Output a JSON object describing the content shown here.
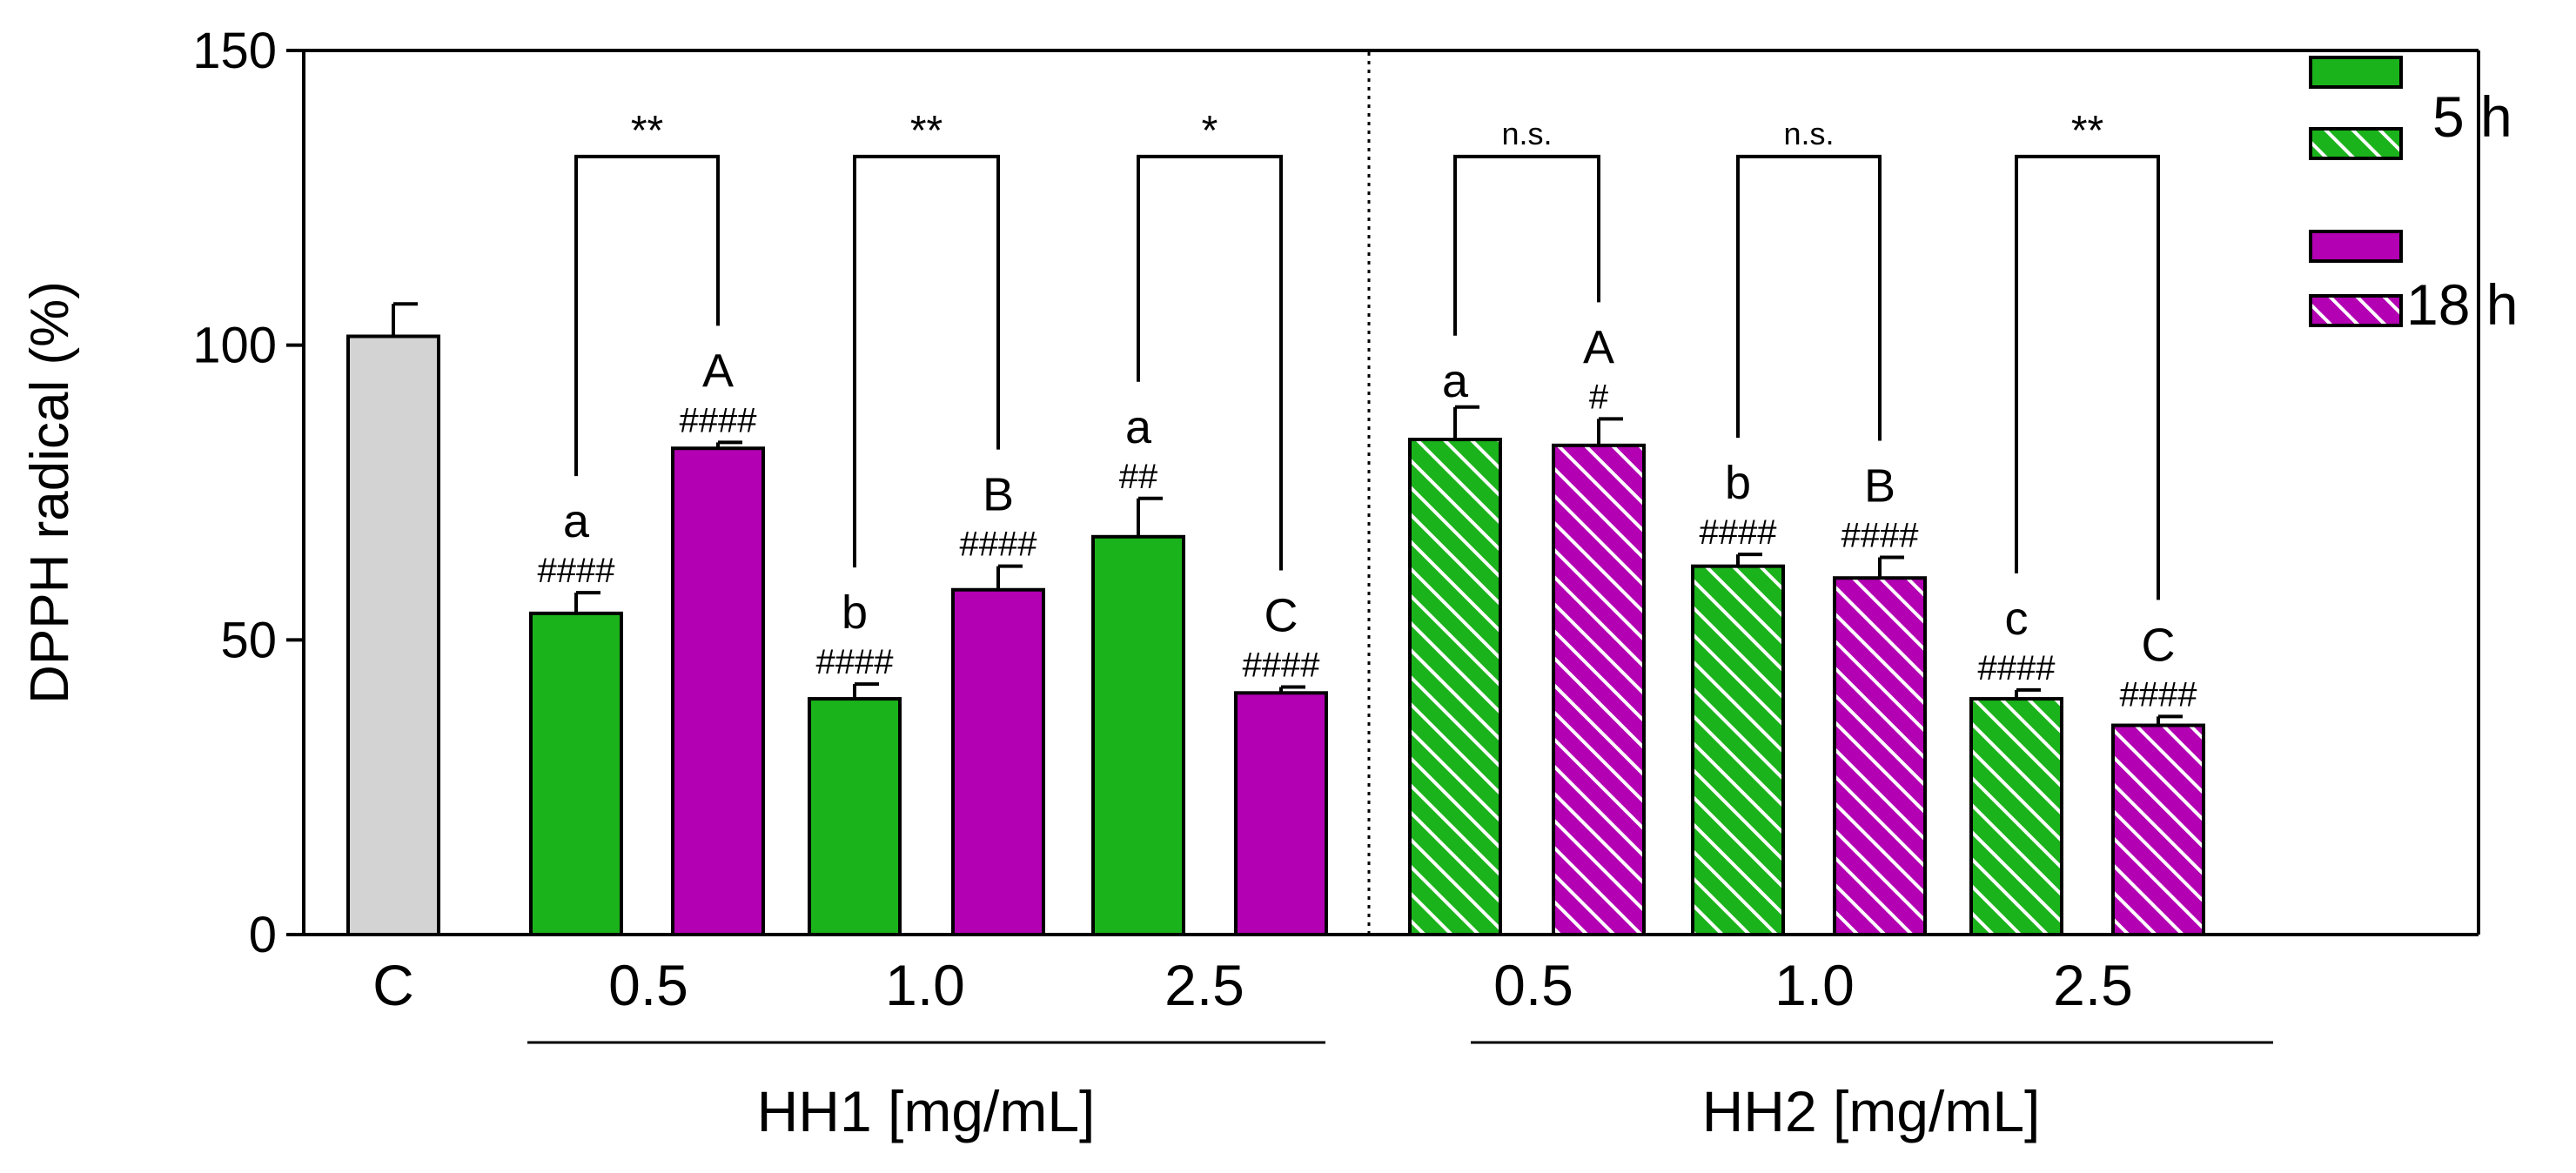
{
  "chart_data": {
    "type": "bar",
    "title": "",
    "xlabel": "",
    "ylabel": "DPPH radical (%)",
    "ylim": [
      0,
      150
    ],
    "yticks": [
      0,
      50,
      100,
      150
    ],
    "groups": [
      {
        "label": "HH1 [mg/mL]"
      },
      {
        "label": "HH2 [mg/mL]"
      }
    ],
    "legend": {
      "position": "top-right",
      "labels": [
        "5 h",
        "18 h"
      ]
    },
    "colors": {
      "control": "#d3d3d3",
      "h5": "#1bb31b",
      "h18": "#b300b3",
      "hatch": "#ffffff"
    },
    "bars": [
      {
        "category": "C",
        "series": "control",
        "value": 101.5,
        "error": 5.5,
        "hatched": false,
        "letter": "",
        "hash": ""
      },
      {
        "category": "HH1 0.5",
        "series": "5 h",
        "value": 54.5,
        "error": 3.5,
        "hatched": false,
        "letter": "a",
        "hash": "####"
      },
      {
        "category": "HH1 0.5",
        "series": "18 h",
        "value": 82.5,
        "error": 1,
        "hatched": false,
        "letter": "A",
        "hash": "####"
      },
      {
        "category": "HH1 1.0",
        "series": "5 h",
        "value": 40,
        "error": 2.5,
        "hatched": false,
        "letter": "b",
        "hash": "####"
      },
      {
        "category": "HH1 1.0",
        "series": "18 h",
        "value": 58.5,
        "error": 4,
        "hatched": false,
        "letter": "B",
        "hash": "####"
      },
      {
        "category": "HH1 2.5",
        "series": "5 h",
        "value": 67.5,
        "error": 6.5,
        "hatched": false,
        "letter": "a",
        "hash": "##"
      },
      {
        "category": "HH1 2.5",
        "series": "18 h",
        "value": 41,
        "error": 1,
        "hatched": false,
        "letter": "C",
        "hash": "####"
      },
      {
        "category": "HH2 0.5",
        "series": "5 h",
        "value": 84,
        "error": 5.5,
        "hatched": true,
        "letter": "a",
        "hash": ""
      },
      {
        "category": "HH2 0.5",
        "series": "18 h",
        "value": 83,
        "error": 4.5,
        "hatched": true,
        "letter": "A",
        "hash": "#"
      },
      {
        "category": "HH2 1.0",
        "series": "5 h",
        "value": 62.5,
        "error": 2,
        "hatched": true,
        "letter": "b",
        "hash": "####"
      },
      {
        "category": "HH2 1.0",
        "series": "18 h",
        "value": 60.5,
        "error": 3.5,
        "hatched": true,
        "letter": "B",
        "hash": "####"
      },
      {
        "category": "HH2 2.5",
        "series": "5 h",
        "value": 40,
        "error": 1.5,
        "hatched": true,
        "letter": "c",
        "hash": "####"
      },
      {
        "category": "HH2 2.5",
        "series": "18 h",
        "value": 35.5,
        "error": 1.5,
        "hatched": true,
        "letter": "C",
        "hash": "####"
      }
    ],
    "xtick_labels": [
      "C",
      "0.5",
      "1.0",
      "2.5",
      "0.5",
      "1.0",
      "2.5"
    ],
    "comparisons": [
      {
        "bars": [
          1,
          2
        ],
        "label": "**",
        "top": 132
      },
      {
        "bars": [
          3,
          4
        ],
        "label": "**",
        "top": 132
      },
      {
        "bars": [
          5,
          6
        ],
        "label": "*",
        "top": 132
      },
      {
        "bars": [
          7,
          8
        ],
        "label": "n.s.",
        "top": 132
      },
      {
        "bars": [
          9,
          10
        ],
        "label": "n.s.",
        "top": 132
      },
      {
        "bars": [
          11,
          12
        ],
        "label": "**",
        "top": 132
      }
    ]
  }
}
